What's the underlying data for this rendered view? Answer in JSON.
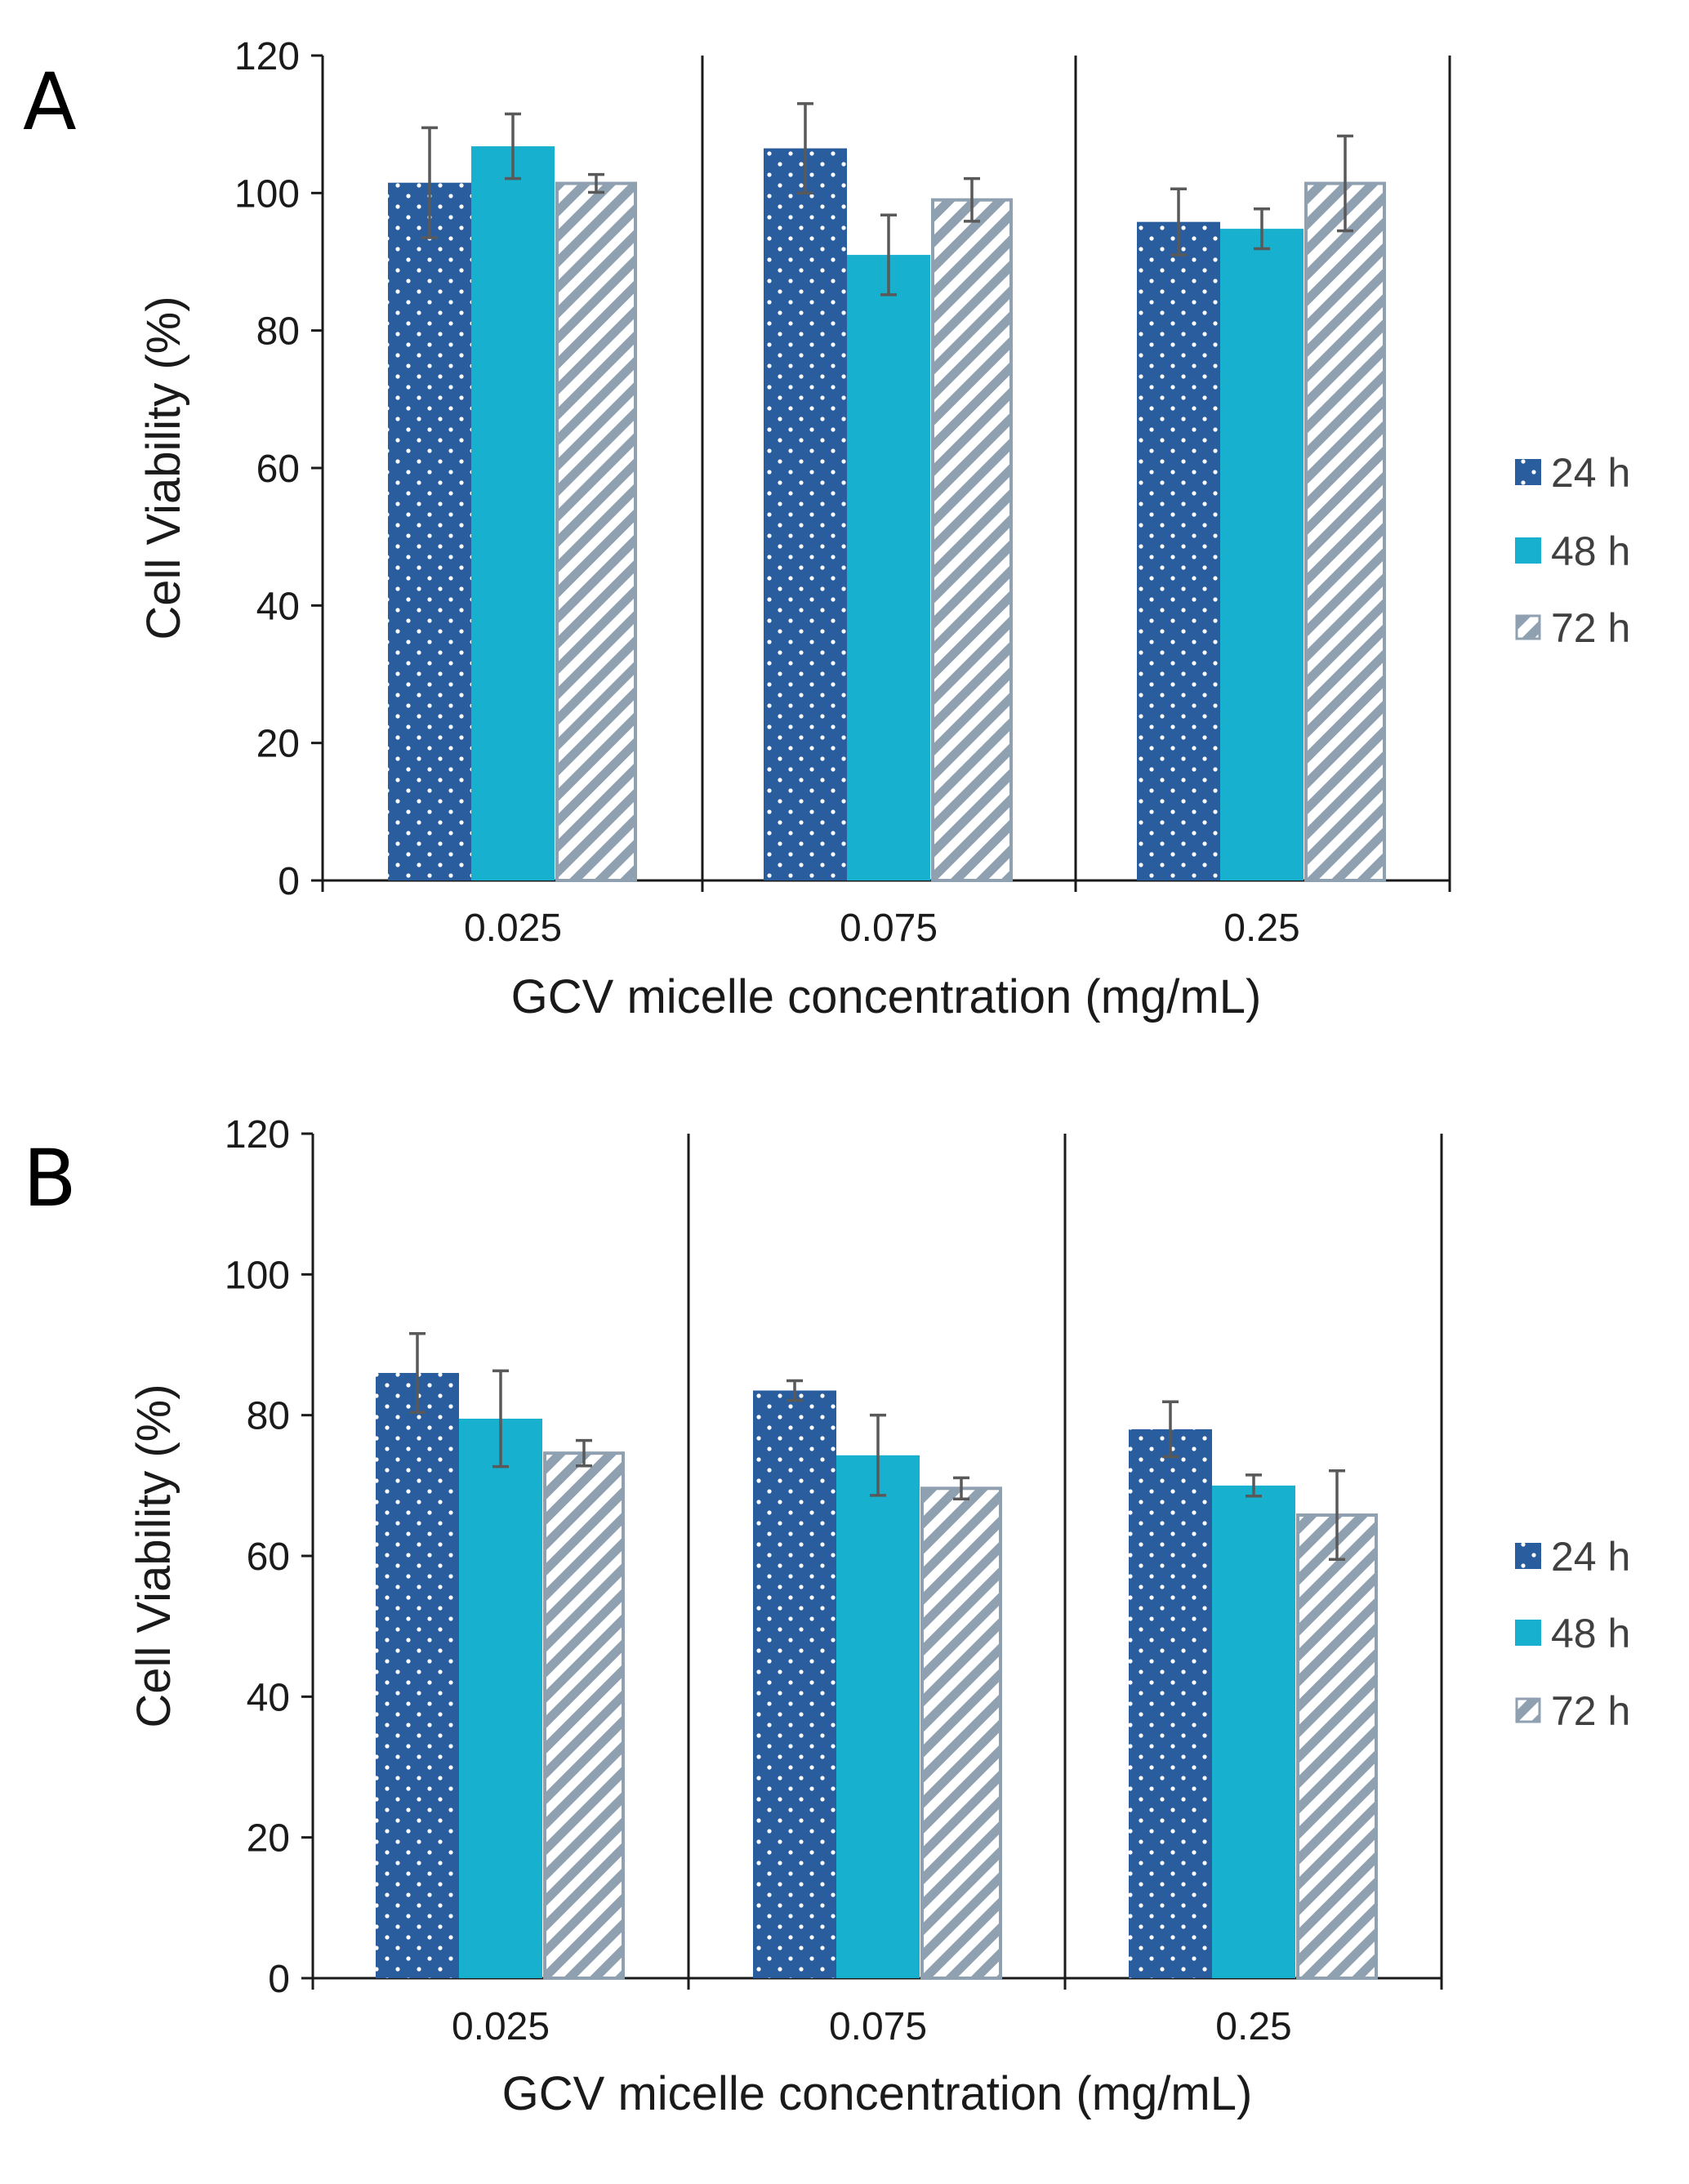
{
  "chart_data": [
    {
      "panel": "A",
      "type": "bar",
      "title": "",
      "categories": [
        "0.025",
        "0.075",
        "0.25"
      ],
      "series": [
        {
          "name": "24 h",
          "values": [
            101.5,
            106.5,
            95.8
          ],
          "errors": [
            8.0,
            6.5,
            4.8
          ]
        },
        {
          "name": "48 h",
          "values": [
            106.8,
            91.0,
            94.8
          ],
          "errors": [
            4.7,
            5.8,
            2.9
          ]
        },
        {
          "name": "72 h",
          "values": [
            101.4,
            99.0,
            101.4
          ],
          "errors": [
            1.3,
            3.1,
            6.9
          ]
        }
      ],
      "xlabel": "GCV micelle concentration (mg/mL)",
      "ylabel": "Cell Viability (%)",
      "ylim": [
        0,
        120
      ],
      "yticks": [
        "0",
        "20",
        "40",
        "60",
        "80",
        "100",
        "120"
      ],
      "legend": "right",
      "grid": false
    },
    {
      "panel": "B",
      "type": "bar",
      "title": "",
      "categories": [
        "0.025",
        "0.075",
        "0.25"
      ],
      "series": [
        {
          "name": "24 h",
          "values": [
            86.0,
            83.5,
            78.0
          ],
          "errors": [
            5.6,
            1.4,
            3.9
          ]
        },
        {
          "name": "48 h",
          "values": [
            79.5,
            74.3,
            70.0
          ],
          "errors": [
            6.8,
            5.7,
            1.5
          ]
        },
        {
          "name": "72 h",
          "values": [
            74.6,
            69.6,
            65.8
          ],
          "errors": [
            1.8,
            1.5,
            6.3
          ]
        }
      ],
      "xlabel": "GCV micelle concentration (mg/mL)",
      "ylabel": "Cell Viability (%)",
      "ylim": [
        0,
        120
      ],
      "yticks": [
        "0",
        "20",
        "40",
        "60",
        "80",
        "100",
        "120"
      ],
      "legend": "right",
      "grid": false
    }
  ],
  "colors": {
    "series_24h": "#2a5d9e",
    "series_48h": "#17b0cf",
    "series_72h_stripe": "#8fa0b0",
    "axis": "#1a1a1a",
    "error_bar": "#595959"
  }
}
